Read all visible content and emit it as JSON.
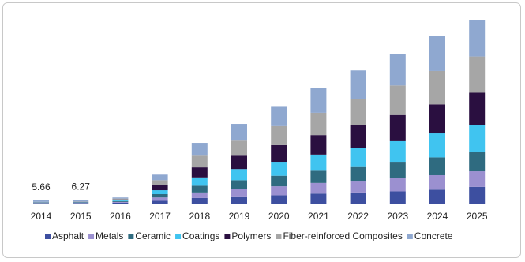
{
  "chart_data": {
    "type": "stacked-bar",
    "categories": [
      "2014",
      "2015",
      "2016",
      "2017",
      "2018",
      "2019",
      "2020",
      "2021",
      "2022",
      "2023",
      "2024",
      "2025"
    ],
    "series": [
      {
        "name": "Asphalt",
        "color": "#3d4fa0",
        "values": [
          0.5,
          0.6,
          1.5,
          5,
          10,
          13,
          15,
          18,
          20,
          22,
          25,
          30
        ]
      },
      {
        "name": "Metals",
        "color": "#9b90d0",
        "values": [
          0.5,
          0.6,
          1.5,
          6,
          10,
          13,
          16,
          19,
          21,
          24,
          26,
          28
        ]
      },
      {
        "name": "Ceramic",
        "color": "#2f6b80",
        "values": [
          0.5,
          0.6,
          1.5,
          6,
          12,
          16,
          19,
          22,
          26,
          29,
          32,
          35
        ]
      },
      {
        "name": "Coatings",
        "color": "#40c4f0",
        "values": [
          0.5,
          0.6,
          1.5,
          7,
          15,
          20,
          25,
          29,
          33,
          37,
          43,
          48
        ]
      },
      {
        "name": "Polymers",
        "color": "#2a0f40",
        "values": [
          0.5,
          0.6,
          1.5,
          9,
          18,
          24,
          30,
          35,
          41,
          47,
          52,
          58
        ]
      },
      {
        "name": "Fiber-reinforced Composites",
        "color": "#a6a6a6",
        "values": [
          0.5,
          0.6,
          1.5,
          9,
          21,
          27,
          34,
          40,
          46,
          53,
          60,
          65
        ]
      },
      {
        "name": "Concrete",
        "color": "#8fa8d0",
        "values": [
          2.66,
          2.67,
          2,
          10,
          23,
          30,
          36,
          45,
          52,
          57,
          63,
          66
        ]
      }
    ],
    "totals": [
      5.66,
      6.27,
      null,
      null,
      null,
      null,
      null,
      null,
      null,
      null,
      null,
      null
    ]
  }
}
